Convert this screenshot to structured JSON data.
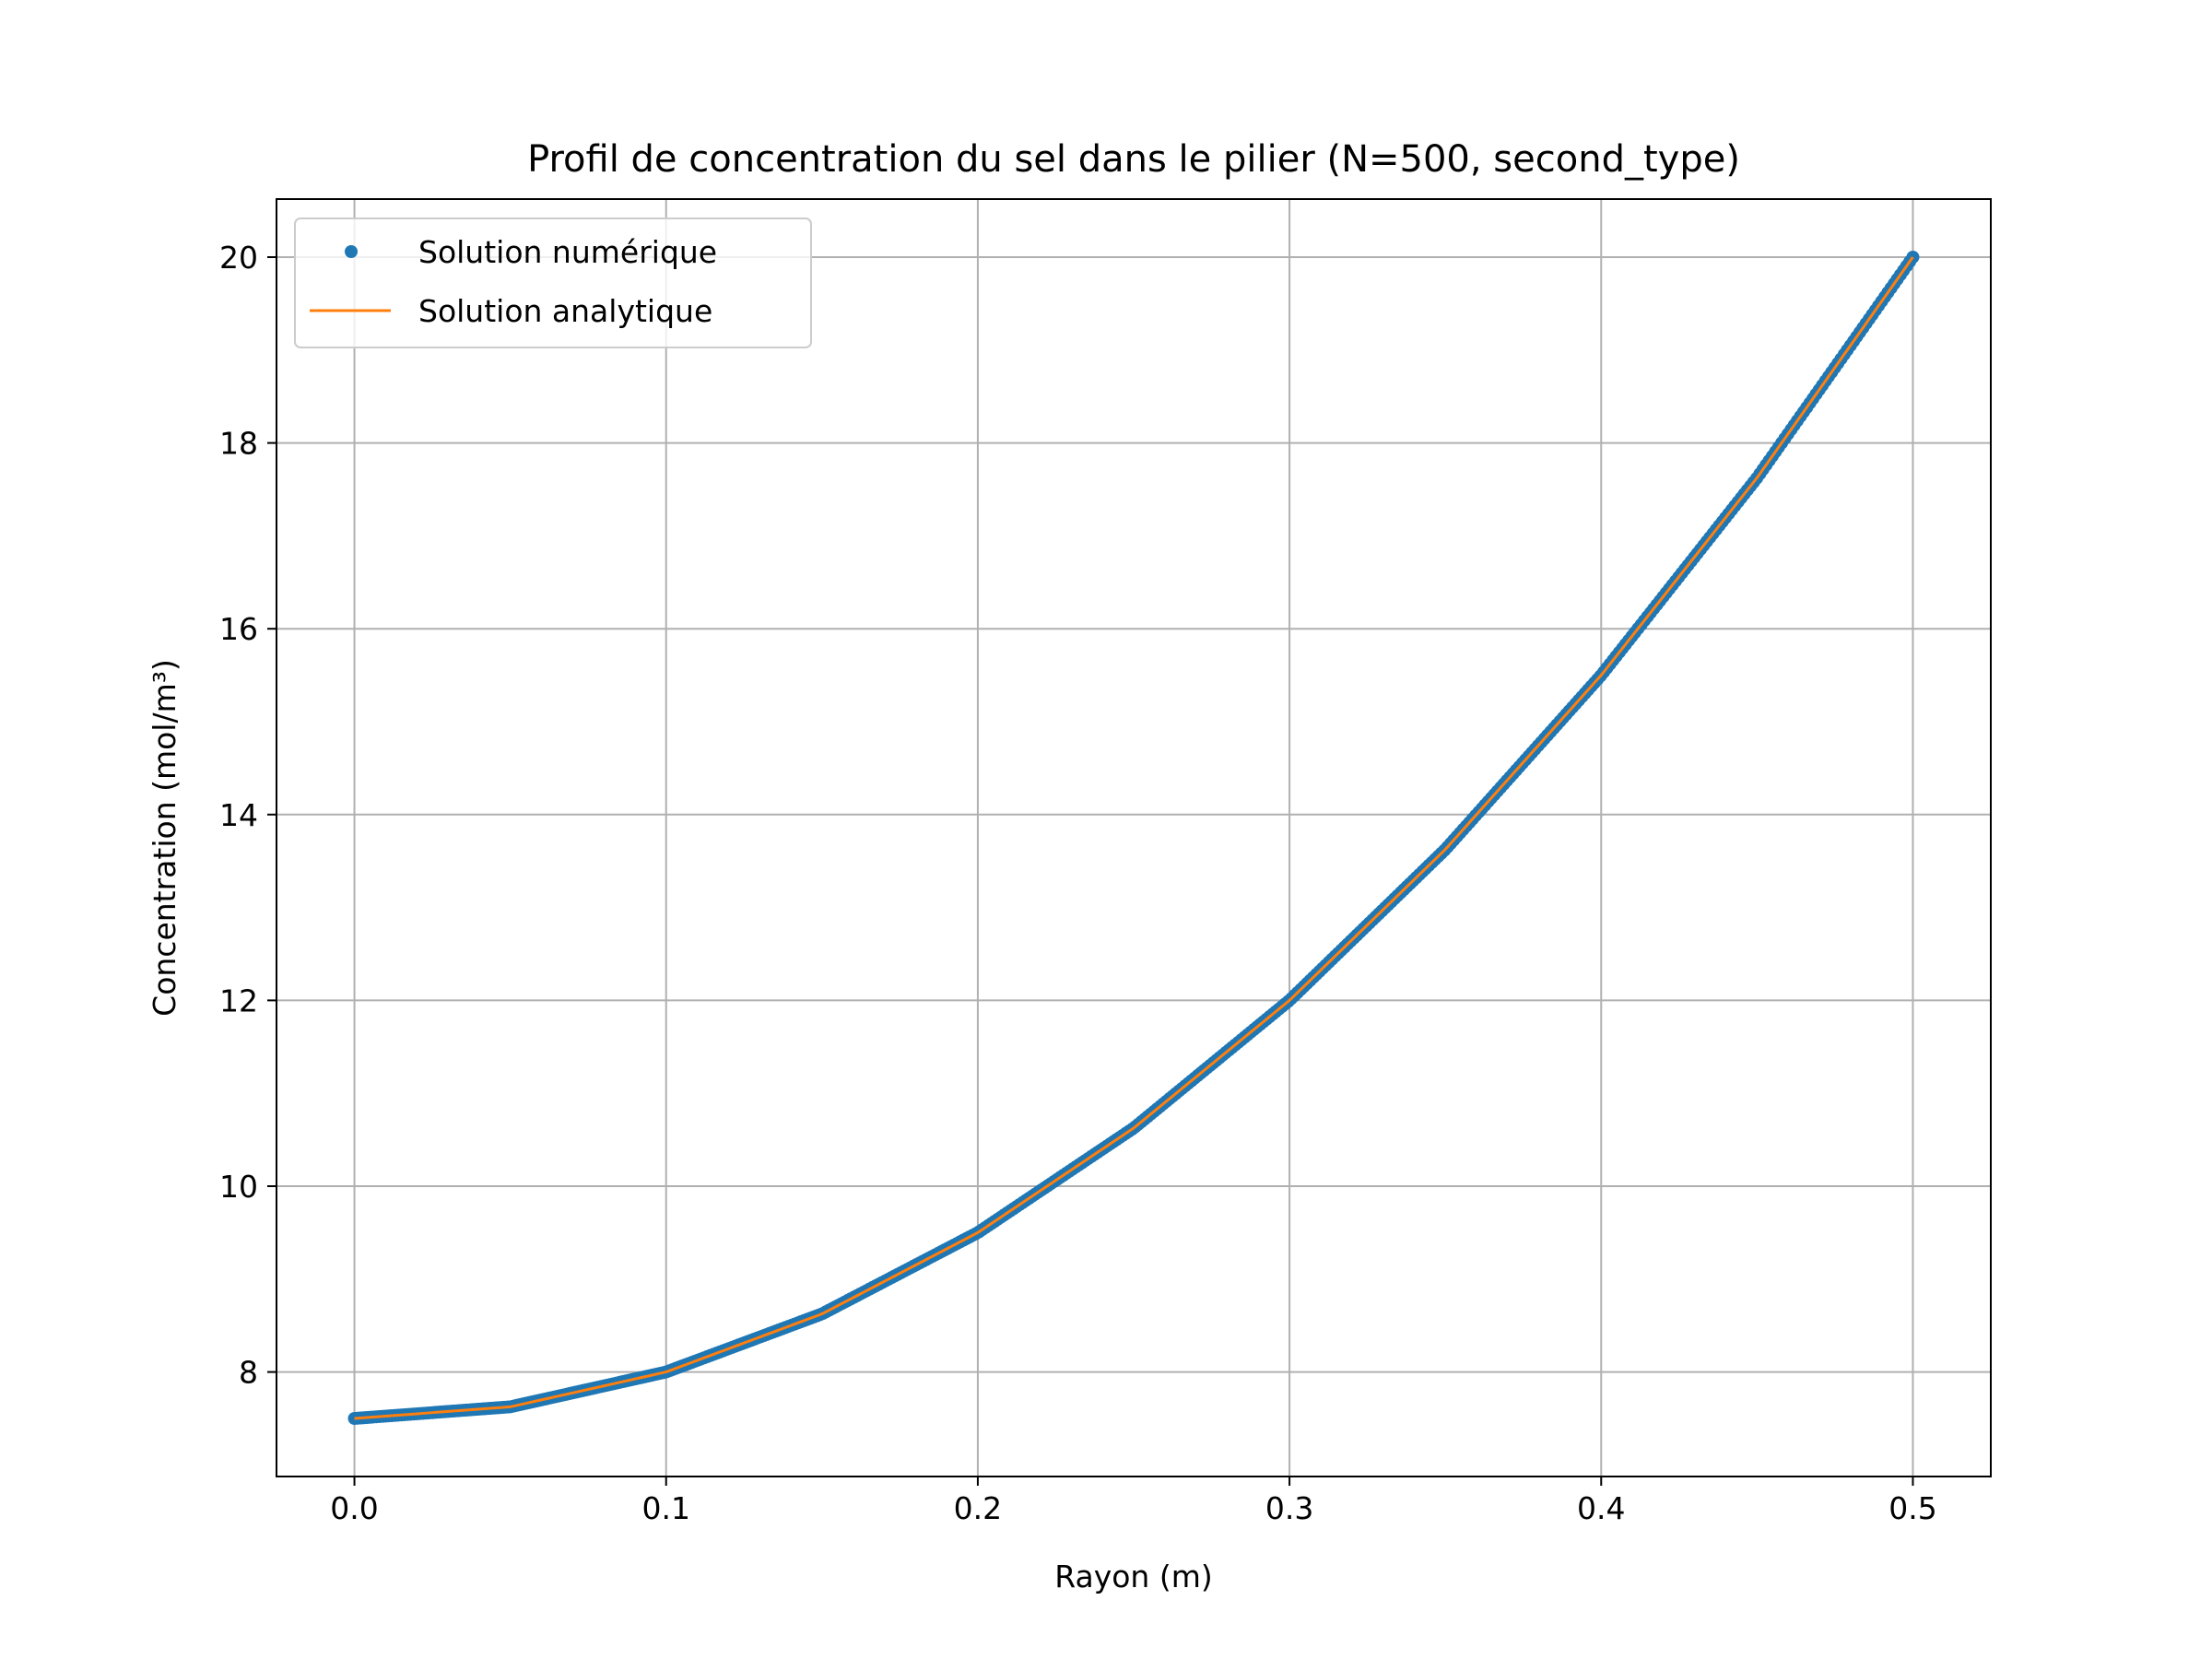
{
  "chart_data": {
    "type": "line",
    "title": "Profil de concentration du sel dans le pilier (N=500, second_type)",
    "xlabel": "Rayon (m)",
    "ylabel": "Concentration (mol/m³)",
    "xlim": [
      -0.025,
      0.525
    ],
    "ylim": [
      6.875,
      20.625
    ],
    "xticks": [
      0.0,
      0.1,
      0.2,
      0.3,
      0.4,
      0.5
    ],
    "xtick_labels": [
      "0.0",
      "0.1",
      "0.2",
      "0.3",
      "0.4",
      "0.5"
    ],
    "yticks": [
      8,
      10,
      12,
      14,
      16,
      18,
      20
    ],
    "ytick_labels": [
      "8",
      "10",
      "12",
      "14",
      "16",
      "18",
      "20"
    ],
    "grid": true,
    "legend_position": "top-left",
    "x_range": [
      0.0,
      0.5
    ],
    "n_points": 500,
    "series": [
      {
        "name": "Solution numérique",
        "style": "markers",
        "color": "#1f77b4",
        "x": [
          0.0,
          0.05,
          0.1,
          0.15,
          0.2,
          0.25,
          0.3,
          0.35,
          0.4,
          0.45,
          0.5
        ],
        "y": [
          7.5,
          7.625,
          8.0,
          8.625,
          9.5,
          10.625,
          12.0,
          13.625,
          15.5,
          17.625,
          20.0
        ]
      },
      {
        "name": "Solution analytique",
        "style": "line",
        "color": "#ff7f0e",
        "x": [
          0.0,
          0.05,
          0.1,
          0.15,
          0.2,
          0.25,
          0.3,
          0.35,
          0.4,
          0.45,
          0.5
        ],
        "y": [
          7.5,
          7.625,
          8.0,
          8.625,
          9.5,
          10.625,
          12.0,
          13.625,
          15.5,
          17.625,
          20.0
        ]
      }
    ]
  }
}
